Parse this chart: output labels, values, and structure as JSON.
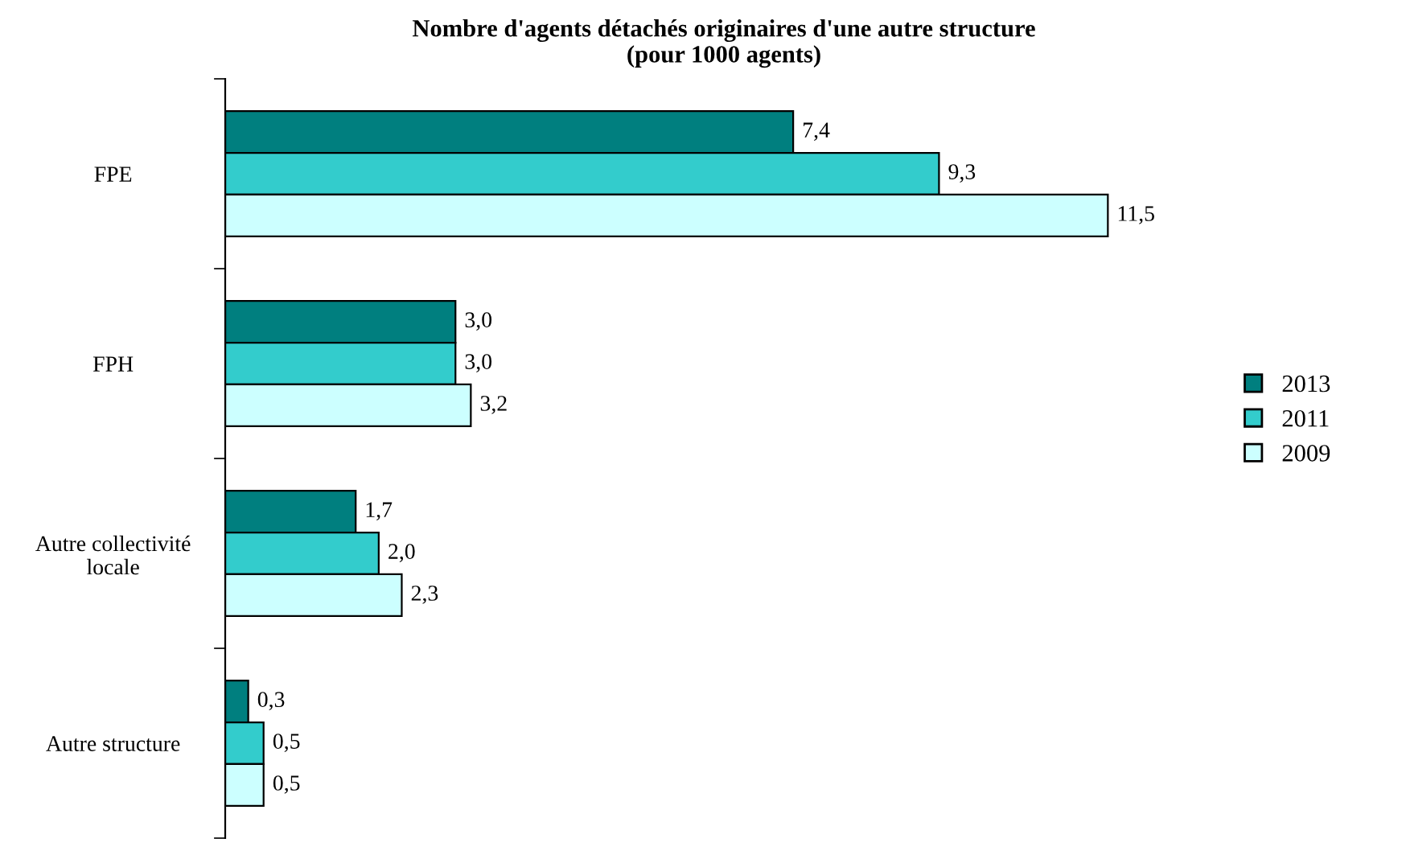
{
  "chart_data": {
    "type": "bar",
    "orientation": "horizontal",
    "title": "Nombre d'agents détachés originaires d'une autre structure\n(pour 1000 agents)",
    "categories": [
      "FPE",
      "FPH",
      "Autre collectivité\nlocale",
      "Autre structure"
    ],
    "series": [
      {
        "name": "2013",
        "color": "#007f7f",
        "values": [
          7.4,
          3.0,
          1.7,
          0.3
        ],
        "value_labels": [
          "7,4",
          "3,0",
          "1,7",
          "0,3"
        ]
      },
      {
        "name": "2011",
        "color": "#33cccc",
        "values": [
          9.3,
          3.0,
          2.0,
          0.5
        ],
        "value_labels": [
          "9,3",
          "3,0",
          "2,0",
          "0,5"
        ]
      },
      {
        "name": "2009",
        "color": "#ccffff",
        "values": [
          11.5,
          3.2,
          2.3,
          0.5
        ],
        "value_labels": [
          "11,5",
          "3,2",
          "2,3",
          "0,5"
        ]
      }
    ],
    "legend": "right",
    "grid": false,
    "tick_labels": "y"
  }
}
